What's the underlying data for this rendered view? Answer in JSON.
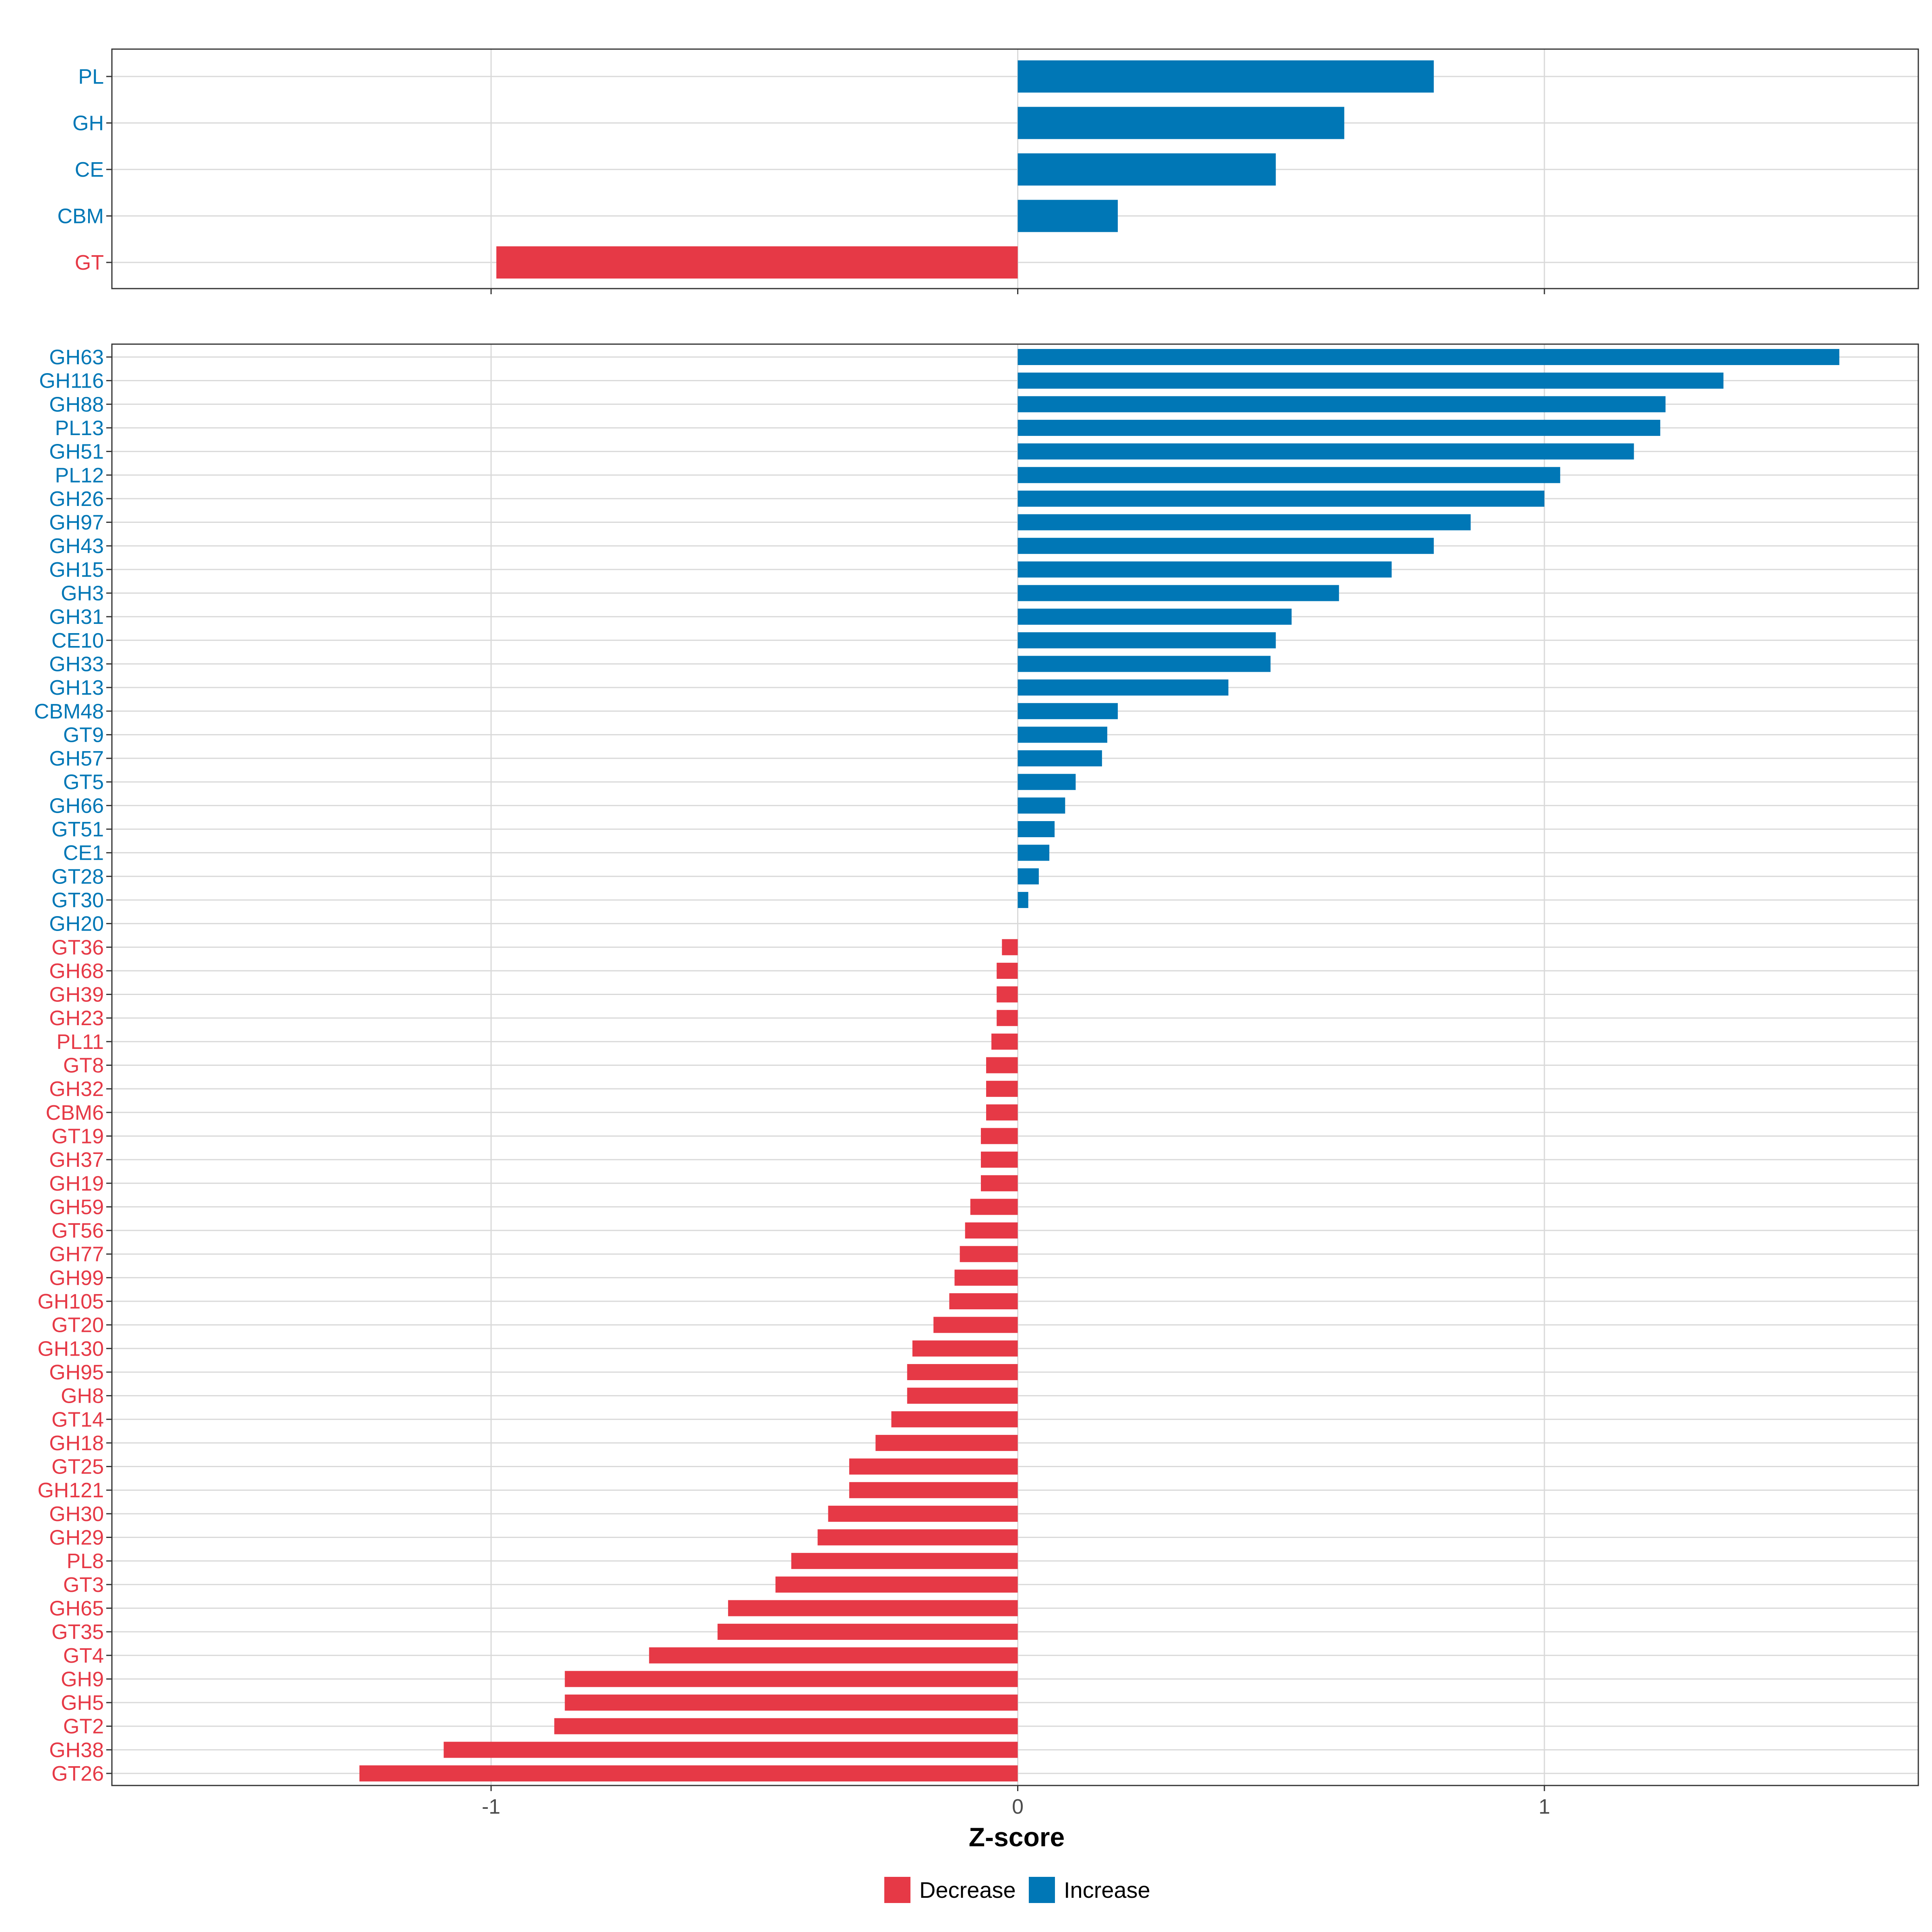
{
  "colors": {
    "decrease": "#E63946",
    "increase": "#0077B6"
  },
  "chart_data": [
    {
      "type": "bar",
      "orientation": "horizontal",
      "panel": "top",
      "categories": [
        "PL",
        "GH",
        "CE",
        "CBM",
        "GT"
      ],
      "values": [
        0.79,
        0.62,
        0.49,
        0.19,
        -0.99
      ],
      "xlim": [
        -1.72,
        1.71
      ],
      "xticks": [
        -1,
        0,
        1
      ],
      "grid": true
    },
    {
      "type": "bar",
      "orientation": "horizontal",
      "panel": "bottom",
      "categories": [
        "GH63",
        "GH116",
        "GH88",
        "PL13",
        "GH51",
        "PL12",
        "GH26",
        "GH97",
        "GH43",
        "GH15",
        "GH3",
        "GH31",
        "CE10",
        "GH33",
        "GH13",
        "CBM48",
        "GT9",
        "GH57",
        "GT5",
        "GH66",
        "GT51",
        "CE1",
        "GT28",
        "GT30",
        "GH20",
        "GT36",
        "GH68",
        "GH39",
        "GH23",
        "PL11",
        "GT8",
        "GH32",
        "CBM6",
        "GT19",
        "GH37",
        "GH19",
        "GH59",
        "GT56",
        "GH77",
        "GH99",
        "GH105",
        "GT20",
        "GH130",
        "GH95",
        "GH8",
        "GT14",
        "GH18",
        "GT25",
        "GH121",
        "GH30",
        "GH29",
        "PL8",
        "GT3",
        "GH65",
        "GT35",
        "GT4",
        "GH9",
        "GH5",
        "GT2",
        "GH38",
        "GT26"
      ],
      "values": [
        1.56,
        1.34,
        1.23,
        1.22,
        1.17,
        1.03,
        1.0,
        0.86,
        0.79,
        0.71,
        0.61,
        0.52,
        0.49,
        0.48,
        0.4,
        0.19,
        0.17,
        0.16,
        0.11,
        0.09,
        0.07,
        0.06,
        0.04,
        0.02,
        0.0,
        -0.03,
        -0.04,
        -0.04,
        -0.04,
        -0.05,
        -0.06,
        -0.06,
        -0.06,
        -0.07,
        -0.07,
        -0.07,
        -0.09,
        -0.1,
        -0.11,
        -0.12,
        -0.13,
        -0.16,
        -0.2,
        -0.21,
        -0.21,
        -0.24,
        -0.27,
        -0.32,
        -0.32,
        -0.36,
        -0.38,
        -0.43,
        -0.46,
        -0.55,
        -0.57,
        -0.7,
        -0.86,
        -0.86,
        -0.88,
        -1.09,
        -1.25
      ],
      "xlim": [
        -1.72,
        1.71
      ],
      "xticks": [
        -1,
        0,
        1
      ],
      "xtick_labels": [
        "-1",
        "0",
        "1"
      ],
      "xlabel": "Z-score",
      "grid": true
    }
  ],
  "legend": {
    "placement": "bottom",
    "items": [
      {
        "label": "Decrease",
        "color": "#E63946"
      },
      {
        "label": "Increase",
        "color": "#0077B6"
      }
    ]
  }
}
